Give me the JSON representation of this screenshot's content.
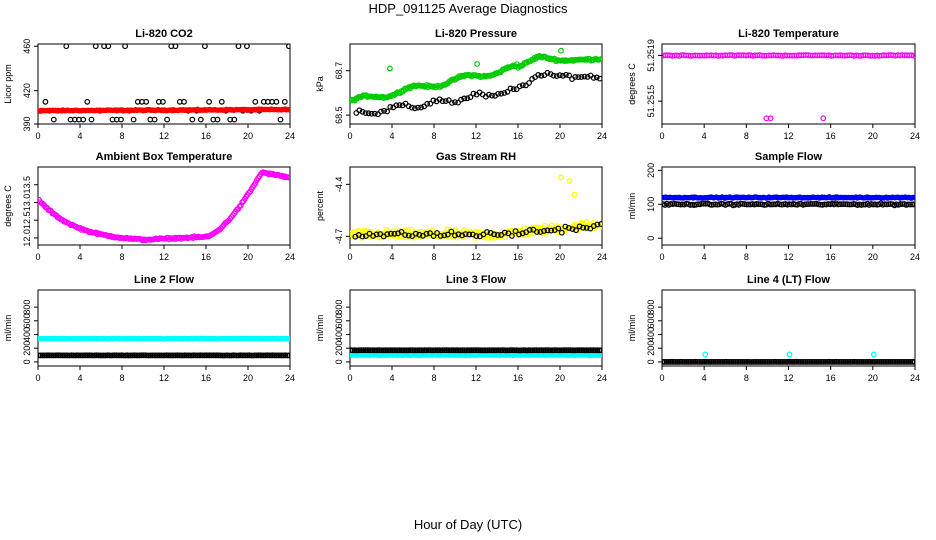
{
  "page": {
    "title": "HDP_091125  Average Diagnostics",
    "xlabel": "Hour of Day (UTC)"
  },
  "colors": {
    "black": "#000000",
    "red": "#ff0000",
    "green": "#00cc00",
    "magenta": "#ff00ff",
    "yellow": "#ffff00",
    "blue": "#0000ff",
    "cyan": "#00ffff"
  },
  "chart_data": [
    {
      "id": "p1",
      "type": "scatter",
      "title": "Li-820 CO2",
      "ylabel": "Licor ppm",
      "xlim": [
        0,
        24
      ],
      "xticks": [
        0,
        4,
        8,
        12,
        16,
        20,
        24
      ],
      "ylim": [
        390,
        462
      ],
      "yticks": [
        390,
        420,
        460
      ],
      "ytick_labels": [
        "390",
        "420",
        "460"
      ],
      "series": [
        {
          "name": "black",
          "color": "black",
          "gen": "co2_black",
          "marker": "open"
        },
        {
          "name": "red",
          "color": "red",
          "gen": "flat",
          "y0": 402,
          "y1": 403,
          "noise": 0.6,
          "n": 200,
          "marker": "filled"
        }
      ]
    },
    {
      "id": "p2",
      "type": "scatter",
      "title": "Li-820 Pressure",
      "ylabel": "kPa",
      "xlim": [
        0,
        24
      ],
      "xticks": [
        0,
        4,
        8,
        12,
        16,
        20,
        24
      ],
      "ylim": [
        68.46,
        68.82
      ],
      "yticks": [
        68.5,
        68.7
      ],
      "ytick_labels": [
        "68.5",
        "68.7"
      ],
      "series": [
        {
          "name": "green",
          "color": "green",
          "gen": "pressure_green",
          "marker": "open"
        },
        {
          "name": "black",
          "color": "black",
          "gen": "pressure_black",
          "marker": "open"
        }
      ]
    },
    {
      "id": "p3",
      "type": "scatter",
      "title": "Li-820 Temperature",
      "ylabel": "degrees C",
      "xlim": [
        0,
        24
      ],
      "xticks": [
        0,
        4,
        8,
        12,
        16,
        20,
        24
      ],
      "ylim": [
        51.2513,
        51.252
      ],
      "yticks": [
        51.2515,
        51.2519
      ],
      "ytick_labels": [
        "51.2515",
        "51.2519"
      ],
      "series": [
        {
          "name": "magenta",
          "color": "magenta",
          "gen": "temp_li",
          "marker": "open"
        }
      ]
    },
    {
      "id": "p4",
      "type": "scatter",
      "title": "Ambient Box Temperature",
      "ylabel": "degrees C",
      "xlim": [
        0,
        24
      ],
      "xticks": [
        0,
        4,
        8,
        12,
        16,
        20,
        24
      ],
      "ylim": [
        11.8,
        14.0
      ],
      "yticks": [
        12.0,
        12.5,
        13.0,
        13.5
      ],
      "ytick_labels": [
        "12.0",
        "12.5",
        "13.0",
        "13.5"
      ],
      "series": [
        {
          "name": "magenta",
          "color": "magenta",
          "gen": "ambient",
          "marker": "open"
        }
      ]
    },
    {
      "id": "p5",
      "type": "scatter",
      "title": "Gas Stream RH",
      "ylabel": "percent",
      "xlim": [
        0,
        24
      ],
      "xticks": [
        0,
        4,
        8,
        12,
        16,
        20,
        24
      ],
      "ylim": [
        -4.75,
        -4.3
      ],
      "yticks": [
        -4.7,
        -4.4
      ],
      "ytick_labels": [
        "-4.7",
        "-4.4"
      ],
      "series": [
        {
          "name": "yellow",
          "color": "yellow",
          "gen": "rh_yellow",
          "marker": "open"
        },
        {
          "name": "black",
          "color": "black",
          "gen": "rh_black",
          "marker": "open"
        }
      ]
    },
    {
      "id": "p6",
      "type": "scatter",
      "title": "Sample Flow",
      "ylabel": "ml/min",
      "xlim": [
        0,
        24
      ],
      "xticks": [
        0,
        4,
        8,
        12,
        16,
        20,
        24
      ],
      "ylim": [
        -20,
        210
      ],
      "yticks": [
        0,
        100,
        200
      ],
      "ytick_labels": [
        "0",
        "100",
        "200"
      ],
      "series": [
        {
          "name": "black",
          "color": "black",
          "gen": "flat",
          "y0": 100,
          "y1": 100,
          "noise": 3,
          "n": 130,
          "marker": "open"
        },
        {
          "name": "blue",
          "color": "blue",
          "gen": "flat",
          "y0": 120,
          "y1": 120,
          "noise": 2,
          "n": 200,
          "marker": "filled"
        }
      ]
    },
    {
      "id": "p7",
      "type": "scatter",
      "title": "Line 2 Flow",
      "ylabel": "ml/min",
      "xlim": [
        0,
        24
      ],
      "xticks": [
        0,
        4,
        8,
        12,
        16,
        20,
        24
      ],
      "ylim": [
        -60,
        1050
      ],
      "yticks": [
        0,
        200,
        400,
        600,
        800
      ],
      "ytick_labels": [
        "0",
        "200",
        "400",
        "600",
        "800"
      ],
      "series": [
        {
          "name": "cyan",
          "color": "cyan",
          "gen": "flat",
          "y0": 340,
          "y1": 340,
          "noise": 5,
          "n": 200,
          "marker": "filled"
        },
        {
          "name": "black",
          "color": "black",
          "gen": "flat",
          "y0": 95,
          "y1": 95,
          "noise": 2,
          "n": 140,
          "marker": "open"
        }
      ]
    },
    {
      "id": "p8",
      "type": "scatter",
      "title": "Line 3 Flow",
      "ylabel": "ml/min",
      "xlim": [
        0,
        24
      ],
      "xticks": [
        0,
        4,
        8,
        12,
        16,
        20,
        24
      ],
      "ylim": [
        -60,
        1050
      ],
      "yticks": [
        0,
        200,
        400,
        600,
        800
      ],
      "ytick_labels": [
        "0",
        "200",
        "400",
        "600",
        "800"
      ],
      "series": [
        {
          "name": "cyan",
          "color": "cyan",
          "gen": "flat",
          "y0": 100,
          "y1": 100,
          "noise": 4,
          "n": 200,
          "marker": "filled"
        },
        {
          "name": "black",
          "color": "black",
          "gen": "flat",
          "y0": 170,
          "y1": 170,
          "noise": 2,
          "n": 140,
          "marker": "open"
        }
      ]
    },
    {
      "id": "p9",
      "type": "scatter",
      "title": "Line 4 (LT) Flow",
      "ylabel": "ml/min",
      "xlim": [
        0,
        24
      ],
      "xticks": [
        0,
        4,
        8,
        12,
        16,
        20,
        24
      ],
      "ylim": [
        -60,
        1050
      ],
      "yticks": [
        0,
        200,
        400,
        600,
        800
      ],
      "ytick_labels": [
        "0",
        "200",
        "400",
        "600",
        "800"
      ],
      "series": [
        {
          "name": "black",
          "color": "black",
          "gen": "flat",
          "y0": 0,
          "y1": 0,
          "noise": 1,
          "n": 140,
          "marker": "open"
        },
        {
          "name": "cyan",
          "color": "cyan",
          "gen": "spikes",
          "base": 0,
          "spike": 110,
          "at": [
            4.1,
            12.1,
            20.1
          ],
          "n": 3,
          "marker": "open"
        }
      ]
    }
  ]
}
